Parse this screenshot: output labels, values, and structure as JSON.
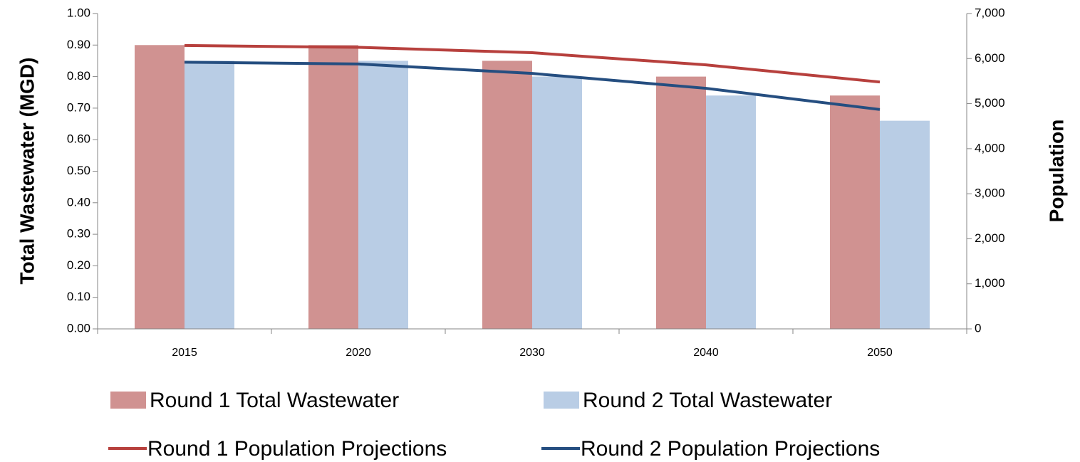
{
  "chart_data": {
    "type": "bar_line",
    "categories": [
      "2015",
      "2020",
      "2030",
      "2040",
      "2050"
    ],
    "ylabel": "Total Wastewater (MGD)",
    "y2label": "Population",
    "ylim": [
      0,
      1
    ],
    "yticks": [
      {
        "value": 0,
        "label": "0.00"
      },
      {
        "value": 0.1,
        "label": "0.10"
      },
      {
        "value": 0.2,
        "label": "0.20"
      },
      {
        "value": 0.3,
        "label": "0.30"
      },
      {
        "value": 0.4,
        "label": "0.40"
      },
      {
        "value": 0.5,
        "label": "0.50"
      },
      {
        "value": 0.6,
        "label": "0.60"
      },
      {
        "value": 0.7,
        "label": "0.70"
      },
      {
        "value": 0.8,
        "label": "0.80"
      },
      {
        "value": 0.9,
        "label": "0.90"
      },
      {
        "value": 1,
        "label": "1.00"
      }
    ],
    "y2lim": [
      0,
      7000
    ],
    "y2ticks": [
      0,
      {
        "value": 1000,
        "label": "1,000"
      },
      {
        "value": 2000,
        "label": "2,000"
      },
      {
        "value": 3000,
        "label": "3,000"
      },
      {
        "value": 4000,
        "label": "4,000"
      },
      {
        "value": 5000,
        "label": "5,000"
      },
      {
        "value": 6000,
        "label": "6,000"
      },
      {
        "value": 7000,
        "label": "7,000"
      }
    ],
    "series": [
      {
        "name": "Round 1 Total Wastewater",
        "kind": "bar",
        "color": "#d09291",
        "values": [
          0.9,
          0.9,
          0.85,
          0.8,
          0.74
        ]
      },
      {
        "name": "Round 2 Total Wastewater",
        "kind": "bar",
        "color": "#b9cde5",
        "values": [
          0.85,
          0.85,
          0.8,
          0.74,
          0.66
        ]
      },
      {
        "name": "Round 1 Population Projections",
        "kind": "line",
        "axis": "y2",
        "color": "#b7403d",
        "values": [
          6290,
          6250,
          6130,
          5860,
          5480
        ]
      },
      {
        "name": "Round 2 Population Projections",
        "kind": "line",
        "axis": "y2",
        "color": "#254e80",
        "values": [
          5920,
          5880,
          5670,
          5340,
          4870
        ]
      }
    ]
  }
}
